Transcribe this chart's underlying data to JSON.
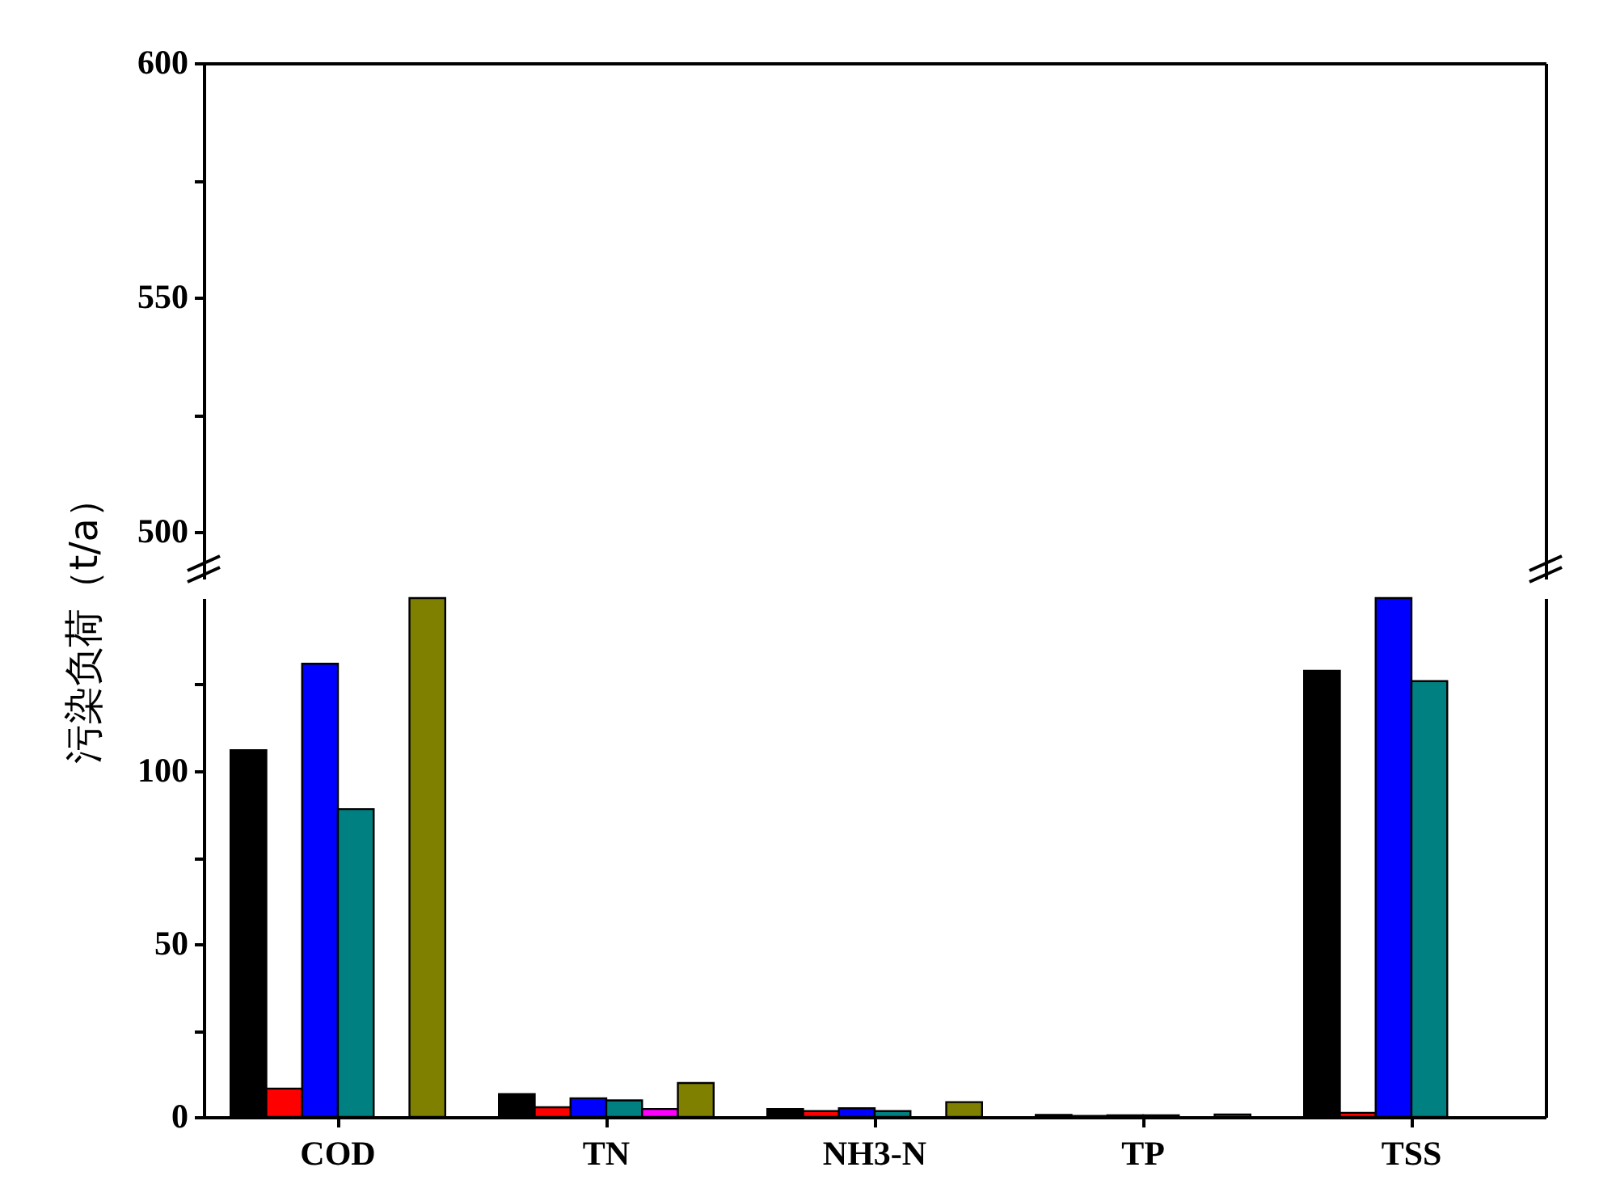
{
  "chart_data": [
    {
      "type": "bar",
      "categories": [
        null,
        null,
        null,
        null,
        null
      ],
      "series": [
        {
          "color": "#000000",
          "values": [
            null,
            null,
            null,
            null,
            null
          ]
        }
      ],
      "ylim": [
        490,
        600
      ],
      "yticks": [
        500,
        {
          "value": 525,
          "label": null
        },
        550,
        {
          "value": 575,
          "label": null
        },
        600
      ],
      "grid": false,
      "tick_labels": "y"
    },
    {
      "type": "bar",
      "ylabel": "污染负荷（t/a）",
      "categories": [
        "COD",
        "TN",
        "NH3-N",
        "TP",
        "TSS"
      ],
      "series": [
        {
          "color": "#000000",
          "values": [
            106,
            6.6,
            2.3,
            0.6,
            129
          ]
        },
        {
          "color": "#ff0000",
          "values": [
            8.2,
            2.8,
            1.7,
            0.3,
            1.2
          ]
        },
        {
          "color": "#0000ff",
          "values": [
            131,
            5.4,
            2.5,
            0.5,
            150
          ]
        },
        {
          "color": "#008080",
          "values": [
            89,
            4.8,
            1.7,
            0.5,
            126
          ]
        },
        {
          "color": "#ff00ff",
          "values": [
            null,
            2.3,
            null,
            null,
            null
          ]
        },
        {
          "color": "#808000",
          "values": [
            150,
            9.8,
            4.3,
            0.7,
            null
          ]
        }
      ],
      "ylim": [
        0,
        150
      ],
      "yticks": [
        0,
        {
          "value": 25,
          "label": null
        },
        50,
        {
          "value": 75,
          "label": null
        },
        100,
        {
          "value": 125,
          "label": null
        }
      ],
      "grid": false
    }
  ]
}
